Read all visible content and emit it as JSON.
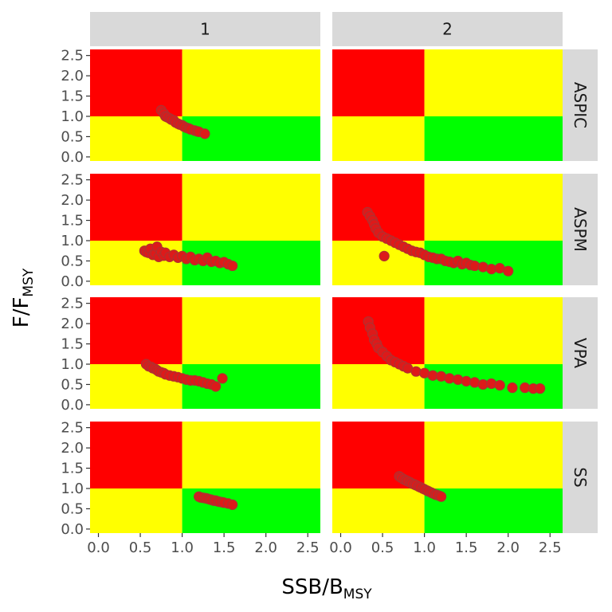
{
  "chart_data": {
    "type": "scatter",
    "layout": "facet-grid",
    "columns": [
      "1",
      "2"
    ],
    "rows": [
      "ASPIC",
      "ASPM",
      "VPA",
      "SS"
    ],
    "xlabel": {
      "main": "SSB/B",
      "sub": "MSY"
    },
    "ylabel": {
      "main": "F/F",
      "sub": "MSY"
    },
    "xlim": [
      -0.1,
      2.65
    ],
    "ylim": [
      -0.1,
      2.65
    ],
    "xticks": [
      "0.0",
      "0.5",
      "1.0",
      "1.5",
      "2.0",
      "2.5"
    ],
    "yticks": [
      "0.0",
      "0.5",
      "1.0",
      "1.5",
      "2.0",
      "2.5"
    ],
    "reference_lines": {
      "x": 1.0,
      "y": 1.0
    },
    "quadrant_colors": {
      "overfished_overfishing": "#ff0000",
      "overfished_only": "#ffff00",
      "overfishing_only": "#ffff00",
      "healthy": "#00ff00"
    },
    "point_color": "#dd1a1a",
    "point_outline": "#b03030",
    "strip_background": "#d9d9d9",
    "panels": [
      {
        "row": "ASPIC",
        "col": "1",
        "x": [
          0.75,
          0.78,
          0.8,
          0.82,
          0.85,
          0.87,
          0.9,
          0.92,
          0.95,
          0.97,
          1.0,
          1.02,
          1.05,
          1.08,
          1.1,
          1.15,
          1.18,
          1.2,
          1.27
        ],
        "y": [
          1.15,
          1.07,
          1.0,
          0.98,
          0.95,
          0.92,
          0.9,
          0.85,
          0.82,
          0.8,
          0.78,
          0.75,
          0.72,
          0.7,
          0.68,
          0.65,
          0.63,
          0.62,
          0.57
        ]
      },
      {
        "row": "ASPIC",
        "col": "2",
        "x": [],
        "y": []
      },
      {
        "row": "ASPM",
        "col": "1",
        "x": [
          0.55,
          0.57,
          0.6,
          0.62,
          0.65,
          0.68,
          0.7,
          0.72,
          0.75,
          0.78,
          0.8,
          0.85,
          0.9,
          0.95,
          1.0,
          1.05,
          1.1,
          1.15,
          1.2,
          1.25,
          1.3,
          1.35,
          1.4,
          1.45,
          1.5,
          1.55,
          1.6
        ],
        "y": [
          0.75,
          0.72,
          0.7,
          0.8,
          0.65,
          0.68,
          0.85,
          0.6,
          0.72,
          0.63,
          0.7,
          0.6,
          0.65,
          0.58,
          0.62,
          0.55,
          0.6,
          0.52,
          0.55,
          0.5,
          0.58,
          0.48,
          0.5,
          0.45,
          0.47,
          0.42,
          0.38
        ]
      },
      {
        "row": "ASPM",
        "col": "2",
        "x": [
          0.32,
          0.35,
          0.38,
          0.4,
          0.42,
          0.45,
          0.5,
          0.55,
          0.6,
          0.65,
          0.7,
          0.75,
          0.8,
          0.85,
          0.9,
          0.95,
          1.0,
          1.05,
          1.1,
          1.15,
          1.2,
          1.25,
          1.3,
          1.35,
          1.4,
          1.45,
          1.5,
          1.55,
          1.6,
          1.7,
          1.8,
          1.9,
          2.0,
          0.52
        ],
        "y": [
          1.7,
          1.6,
          1.5,
          1.4,
          1.3,
          1.2,
          1.1,
          1.05,
          1.0,
          0.95,
          0.9,
          0.85,
          0.8,
          0.75,
          0.72,
          0.7,
          0.65,
          0.6,
          0.58,
          0.55,
          0.55,
          0.5,
          0.48,
          0.45,
          0.5,
          0.42,
          0.45,
          0.4,
          0.38,
          0.35,
          0.3,
          0.32,
          0.25,
          0.62
        ]
      },
      {
        "row": "VPA",
        "col": "1",
        "x": [
          0.57,
          0.6,
          0.63,
          0.65,
          0.68,
          0.7,
          0.72,
          0.75,
          0.78,
          0.8,
          0.85,
          0.9,
          0.95,
          1.0,
          1.05,
          1.1,
          1.15,
          1.2,
          1.25,
          1.3,
          1.35,
          1.4,
          1.48
        ],
        "y": [
          1.0,
          0.95,
          0.93,
          0.9,
          0.88,
          0.85,
          0.82,
          0.8,
          0.78,
          0.75,
          0.72,
          0.7,
          0.68,
          0.65,
          0.62,
          0.6,
          0.6,
          0.58,
          0.55,
          0.52,
          0.5,
          0.45,
          0.65
        ]
      },
      {
        "row": "VPA",
        "col": "2",
        "x": [
          0.33,
          0.35,
          0.38,
          0.4,
          0.43,
          0.45,
          0.5,
          0.55,
          0.6,
          0.65,
          0.7,
          0.75,
          0.8,
          0.9,
          1.0,
          1.1,
          1.2,
          1.3,
          1.4,
          1.5,
          1.6,
          1.7,
          1.8,
          1.9,
          2.05,
          2.2,
          2.3,
          2.38
        ],
        "y": [
          2.05,
          1.9,
          1.75,
          1.6,
          1.5,
          1.4,
          1.3,
          1.2,
          1.1,
          1.05,
          1.0,
          0.95,
          0.9,
          0.82,
          0.78,
          0.72,
          0.7,
          0.65,
          0.62,
          0.58,
          0.55,
          0.5,
          0.52,
          0.48,
          0.42,
          0.42,
          0.4,
          0.4
        ]
      },
      {
        "row": "SS",
        "col": "1",
        "x": [
          1.2,
          1.22,
          1.25,
          1.28,
          1.3,
          1.33,
          1.35,
          1.38,
          1.4,
          1.43,
          1.45,
          1.48,
          1.5,
          1.55,
          1.6
        ],
        "y": [
          0.8,
          0.78,
          0.77,
          0.76,
          0.75,
          0.73,
          0.72,
          0.7,
          0.7,
          0.68,
          0.67,
          0.66,
          0.65,
          0.63,
          0.6
        ]
      },
      {
        "row": "SS",
        "col": "2",
        "x": [
          0.7,
          0.72,
          0.75,
          0.78,
          0.8,
          0.83,
          0.85,
          0.88,
          0.9,
          0.93,
          0.95,
          0.98,
          1.0,
          1.03,
          1.05,
          1.08,
          1.1,
          1.13,
          1.15,
          1.18,
          1.2
        ],
        "y": [
          1.3,
          1.27,
          1.23,
          1.2,
          1.18,
          1.15,
          1.12,
          1.1,
          1.08,
          1.05,
          1.03,
          1.0,
          0.98,
          0.95,
          0.93,
          0.9,
          0.88,
          0.85,
          0.84,
          0.82,
          0.8
        ]
      }
    ]
  }
}
